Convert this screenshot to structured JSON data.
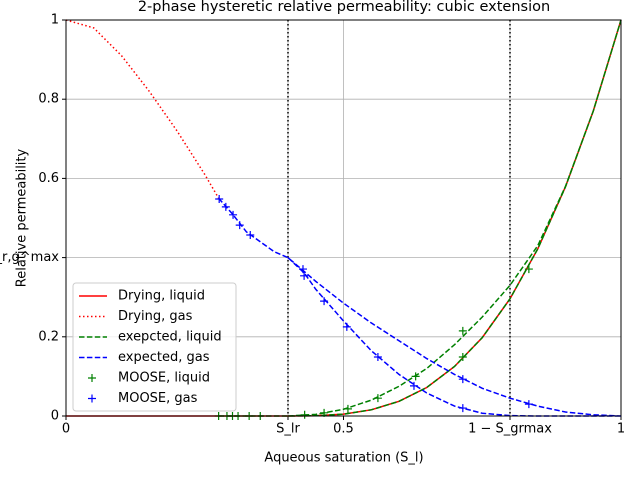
{
  "chart_data": {
    "type": "line",
    "title": "2-phase hysteretic relative permeability: cubic extension",
    "xlabel": "Aqueous saturation (S_l)",
    "ylabel": "Relative permeability",
    "xlim": [
      0,
      1
    ],
    "ylim": [
      0,
      1
    ],
    "xticks": [
      0,
      {
        "value": 0.4,
        "label": "S_lr"
      },
      0.5,
      {
        "value": 0.8,
        "label": "1 − S_grmax"
      },
      1
    ],
    "yticks": [
      0,
      0.2,
      {
        "value": 0.4,
        "label": "k_r,g^max"
      },
      0.6,
      0.8,
      1
    ],
    "vlines": [
      0.4,
      0.8
    ],
    "grid": true,
    "legend": "lower left",
    "series": [
      {
        "name": "Drying, liquid",
        "color": "#ff0000",
        "style": "solid",
        "x": [
          0,
          0.05,
          0.1,
          0.15,
          0.2,
          0.25,
          0.3,
          0.35,
          0.4,
          0.45,
          0.5,
          0.55,
          0.6,
          0.65,
          0.7,
          0.75,
          0.8,
          0.85,
          0.9,
          0.95,
          1
        ],
        "values": [
          0,
          0,
          0,
          0,
          0,
          0,
          0,
          0,
          0,
          0.0006,
          0.0046,
          0.0156,
          0.037,
          0.072,
          0.125,
          0.198,
          0.296,
          0.422,
          0.579,
          0.77,
          1
        ]
      },
      {
        "name": "Drying, gas",
        "color": "#ff0000",
        "style": "dotted",
        "x": [
          0,
          0.05,
          0.1,
          0.15,
          0.2,
          0.25,
          0.275
        ],
        "values": [
          1,
          0.98,
          0.91,
          0.82,
          0.72,
          0.61,
          0.55
        ]
      },
      {
        "name": "exepcted, liquid",
        "color": "#008000",
        "style": "dashed",
        "x": [
          0.275,
          0.3,
          0.35,
          0.4,
          0.45,
          0.5,
          0.55,
          0.6,
          0.65,
          0.7,
          0.75,
          0.8,
          0.85,
          0.9,
          0.95,
          1,
          null,
          0.4,
          0.45,
          0.5,
          0.55,
          0.6,
          0.65,
          0.7,
          0.75,
          0.8,
          0.85,
          0.9,
          0.95,
          1
        ],
        "values": [
          0,
          0,
          0,
          0,
          0.0006,
          0.0046,
          0.0156,
          0.037,
          0.072,
          0.125,
          0.198,
          0.296,
          0.422,
          0.579,
          0.77,
          1,
          null,
          0,
          0.004,
          0.017,
          0.04,
          0.075,
          0.12,
          0.18,
          0.25,
          0.33,
          0.43,
          0.58,
          0.77,
          1
        ]
      },
      {
        "name": "expected, gas",
        "color": "#0000ff",
        "style": "dashed",
        "x": [
          0.275,
          0.3,
          0.325,
          0.35,
          0.375,
          0.4,
          0.45,
          0.5,
          0.55,
          0.6,
          0.65,
          0.7,
          0.75,
          0.8,
          0.85,
          0.9,
          0.95,
          1,
          null,
          0.4,
          0.43,
          0.45,
          0.5,
          0.55,
          0.6,
          0.65,
          0.7,
          0.75,
          0.8,
          0.85,
          1
        ],
        "values": [
          0.55,
          0.51,
          0.465,
          0.44,
          0.415,
          0.4,
          0.34,
          0.285,
          0.235,
          0.19,
          0.145,
          0.105,
          0.07,
          0.045,
          0.025,
          0.01,
          0.003,
          0,
          null,
          0.4,
          0.36,
          0.32,
          0.24,
          0.165,
          0.105,
          0.058,
          0.025,
          0.007,
          0.001,
          0,
          0
        ]
      },
      {
        "name": "MOOSE, liquid",
        "color": "#008000",
        "style": "plus",
        "x": [
          0.275,
          0.29,
          0.3,
          0.31,
          0.33,
          0.35,
          0.43,
          0.465,
          0.508,
          0.562,
          0.63,
          0.715,
          0.715,
          0.834
        ],
        "values": [
          0,
          0,
          0,
          0,
          0,
          0,
          0.003,
          0.008,
          0.018,
          0.045,
          0.1,
          0.149,
          0.215,
          0.371
        ]
      },
      {
        "name": "MOOSE, gas",
        "color": "#0000ff",
        "style": "plus",
        "x": [
          0.276,
          0.288,
          0.301,
          0.313,
          0.332,
          0.427,
          0.429,
          0.465,
          0.506,
          0.562,
          0.627,
          0.715,
          0.715,
          0.834
        ],
        "values": [
          0.548,
          0.528,
          0.508,
          0.482,
          0.457,
          0.371,
          0.354,
          0.29,
          0.225,
          0.149,
          0.076,
          0.02,
          0.093,
          0.03
        ]
      }
    ]
  }
}
